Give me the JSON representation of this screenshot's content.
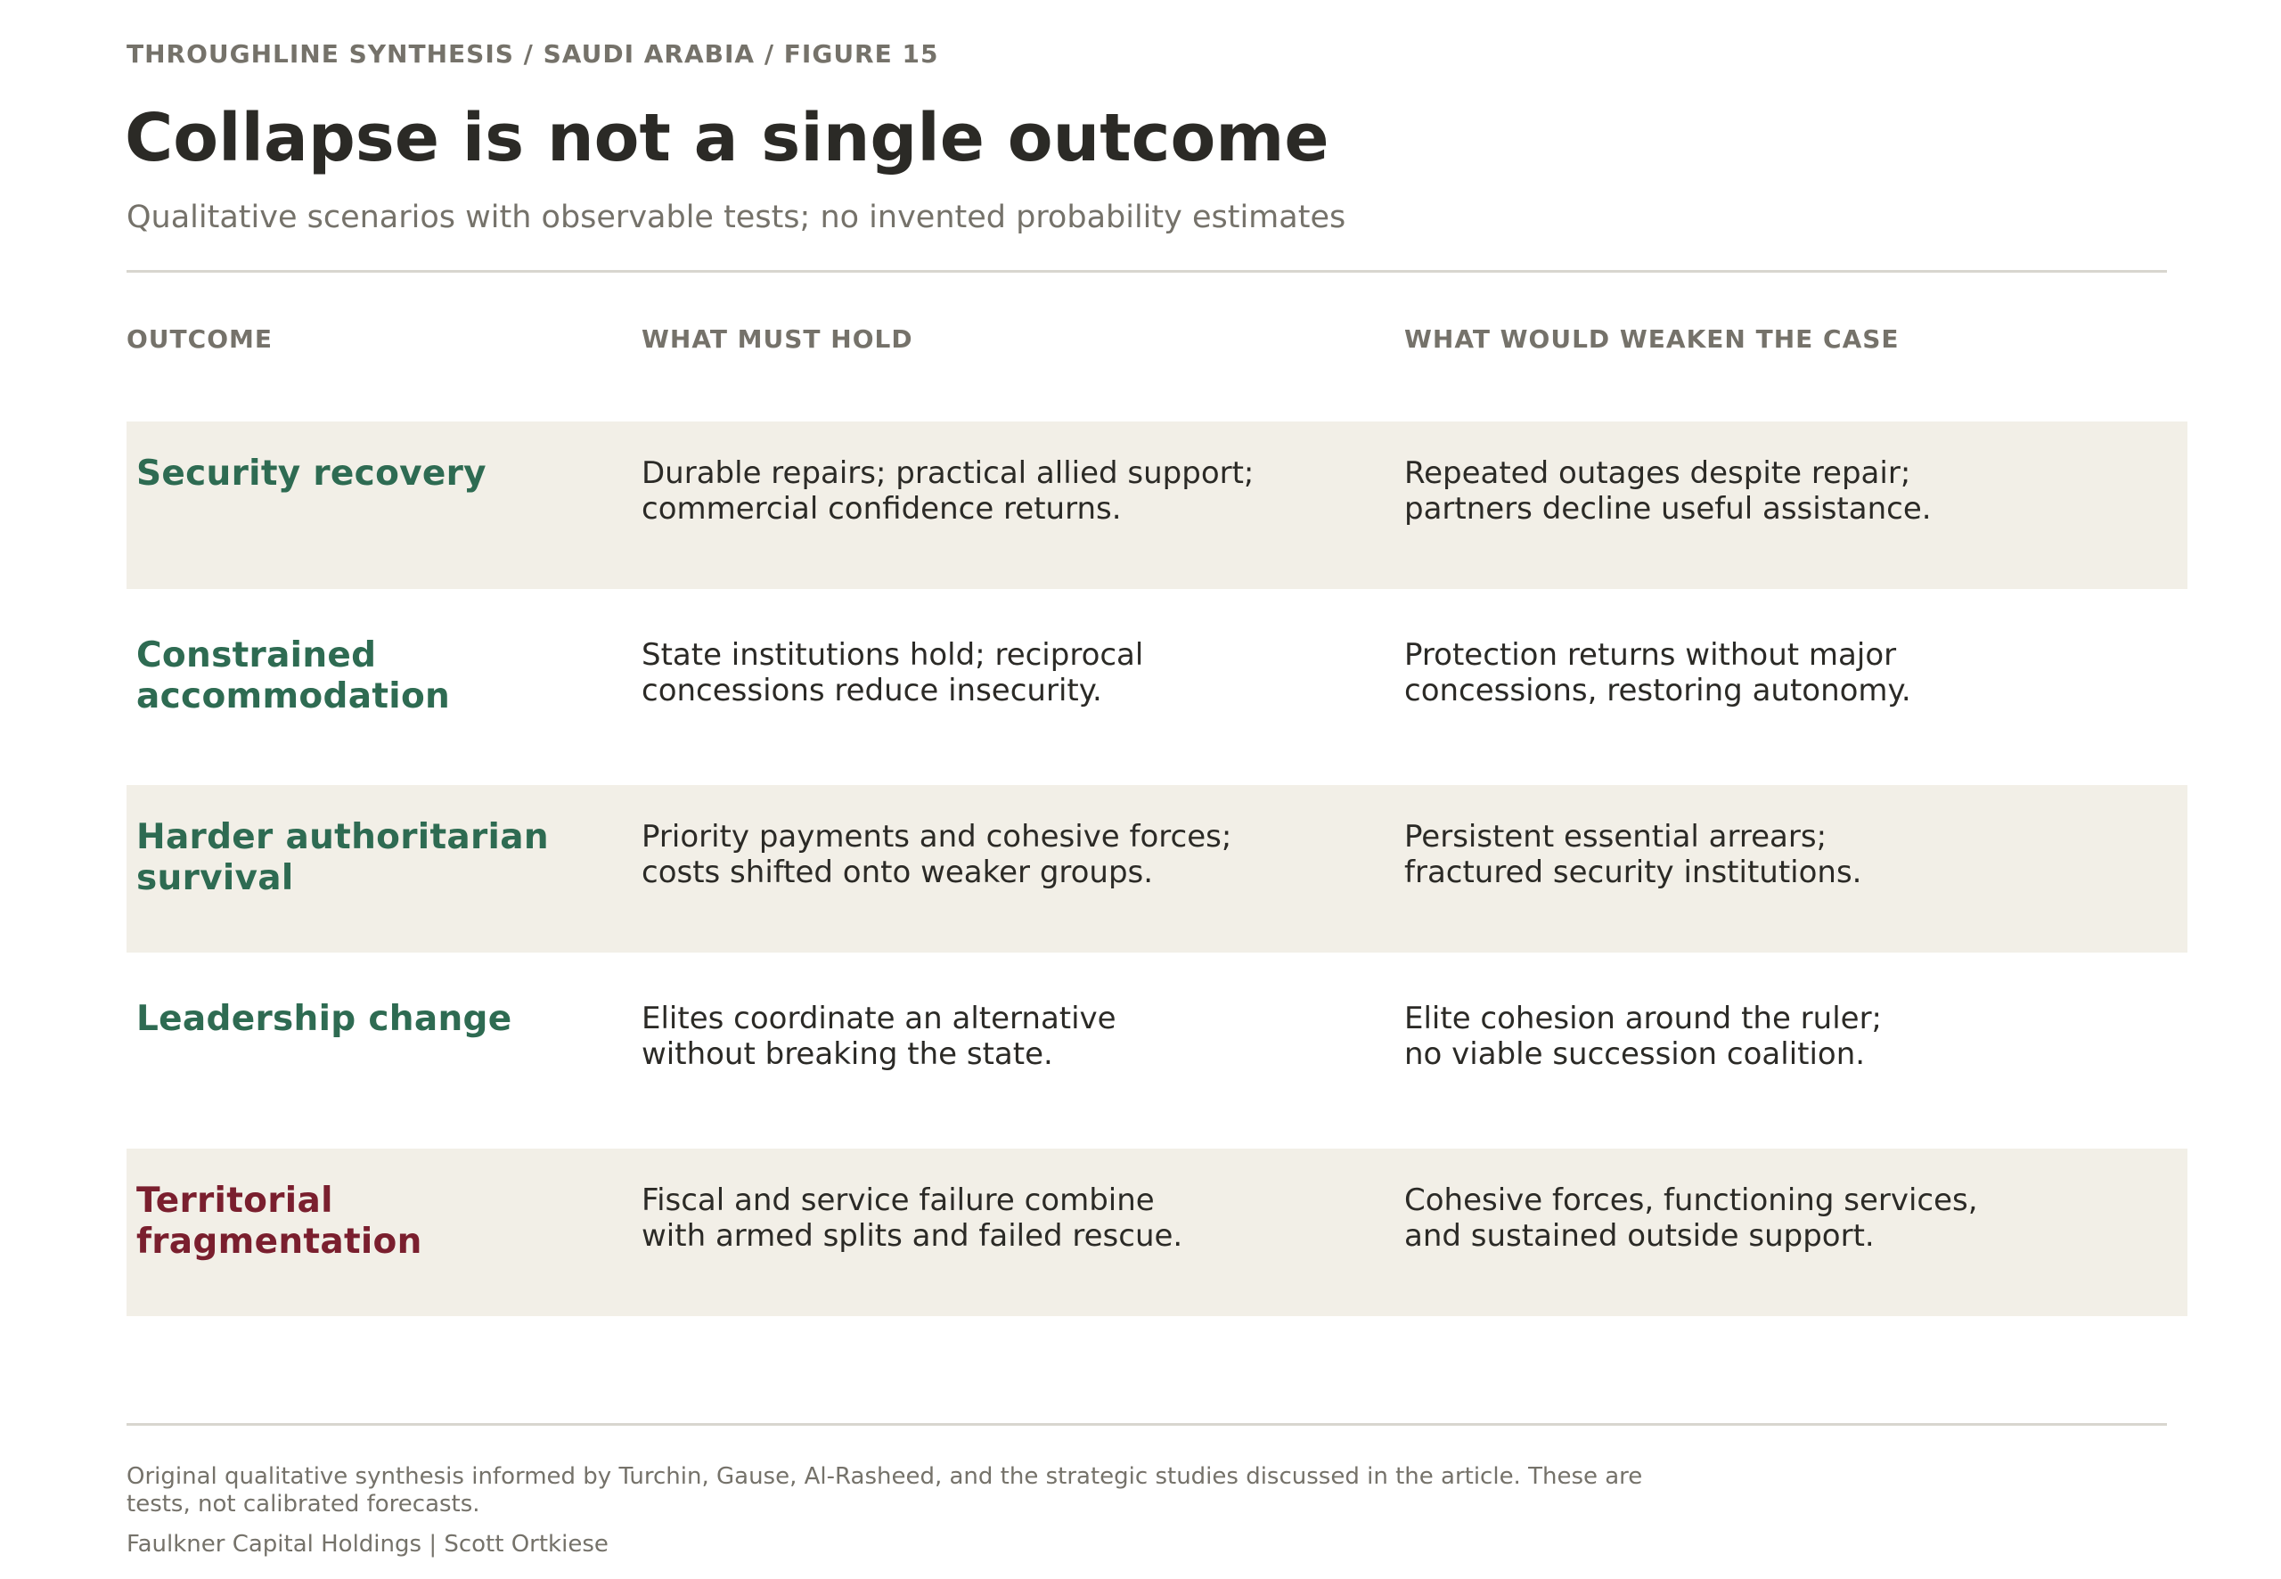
{
  "header": {
    "eyebrow": "THROUGHLINE SYNTHESIS / SAUDI ARABIA / FIGURE 15",
    "title": "Collapse is not a single outcome",
    "subtitle": "Qualitative scenarios with observable tests; no invented probability estimates"
  },
  "table": {
    "columns": [
      "OUTCOME",
      "WHAT MUST HOLD",
      "WHAT WOULD WEAKEN THE CASE"
    ],
    "accent_colors": {
      "green": "#2e6b52",
      "red": "#7a1f2e",
      "row_shade": "#f2efe7"
    },
    "rows": [
      {
        "outcome": [
          "Security recovery"
        ],
        "hold": [
          "Durable repairs; practical allied support;",
          "commercial confidence returns."
        ],
        "weaken": [
          "Repeated outages despite repair;",
          "partners decline useful assistance."
        ]
      },
      {
        "outcome": [
          "Constrained",
          "accommodation"
        ],
        "hold": [
          "State institutions hold; reciprocal",
          "concessions reduce insecurity."
        ],
        "weaken": [
          "Protection returns without major",
          "concessions, restoring autonomy."
        ]
      },
      {
        "outcome": [
          "Harder authoritarian",
          "survival"
        ],
        "hold": [
          "Priority payments and cohesive forces;",
          "costs shifted onto weaker groups."
        ],
        "weaken": [
          "Persistent essential arrears;",
          "fractured security institutions."
        ]
      },
      {
        "outcome": [
          "Leadership change"
        ],
        "hold": [
          "Elites coordinate an alternative",
          "without breaking the state."
        ],
        "weaken": [
          "Elite cohesion around the ruler;",
          "no viable succession coalition."
        ]
      },
      {
        "outcome": [
          "Territorial",
          "fragmentation"
        ],
        "hold": [
          "Fiscal and service failure combine",
          "with armed splits and failed rescue."
        ],
        "weaken": [
          "Cohesive forces, functioning services,",
          "and sustained outside support."
        ]
      }
    ]
  },
  "footer": {
    "note_lines": [
      "Original qualitative synthesis informed by Turchin, Gause, Al-Rasheed, and the strategic studies discussed in the article. These are",
      "tests, not calibrated forecasts."
    ],
    "credit": "Faulkner Capital Holdings | Scott Ortkiese"
  }
}
